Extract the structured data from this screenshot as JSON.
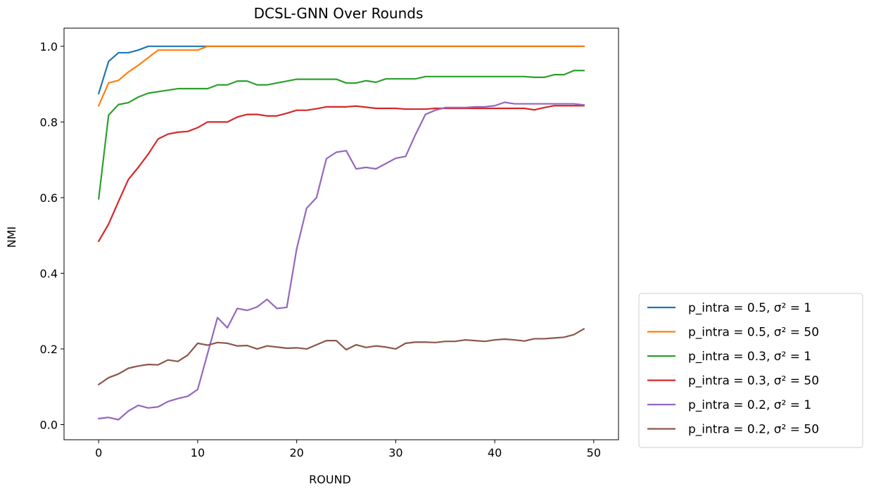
{
  "chart_data": {
    "type": "line",
    "title": "DCSL-GNN Over Rounds",
    "xlabel": "ROUND",
    "ylabel": "NMI",
    "xlim": [
      -3.5,
      52.5
    ],
    "ylim": [
      -0.04,
      1.048
    ],
    "xticks": [
      0,
      10,
      20,
      30,
      40,
      50
    ],
    "yticks": [
      0.0,
      0.2,
      0.4,
      0.6,
      0.8,
      1.0
    ],
    "xtick_labels": [
      "0",
      "10",
      "20",
      "30",
      "40",
      "50"
    ],
    "ytick_labels": [
      "0.0",
      "0.2",
      "0.4",
      "0.6",
      "0.8",
      "1.0"
    ],
    "grid": false,
    "legend_position": "outside-bottom-right",
    "x": [
      0,
      1,
      2,
      3,
      4,
      5,
      6,
      7,
      8,
      9,
      10,
      11,
      12,
      13,
      14,
      15,
      16,
      17,
      18,
      19,
      20,
      21,
      22,
      23,
      24,
      25,
      26,
      27,
      28,
      29,
      30,
      31,
      32,
      33,
      34,
      35,
      36,
      37,
      38,
      39,
      40,
      41,
      42,
      43,
      44,
      45,
      46,
      47,
      48,
      49
    ],
    "series": [
      {
        "name": "p_intra = 0.5, σ² = 1",
        "color": "#1f77b4",
        "values": [
          0.875,
          0.96,
          0.983,
          0.983,
          0.99,
          1.0,
          1.0,
          1.0,
          1.0,
          1.0,
          1.0,
          1.0,
          1.0,
          1.0,
          1.0,
          1.0,
          1.0,
          1.0,
          1.0,
          1.0,
          1.0,
          1.0,
          1.0,
          1.0,
          1.0,
          1.0,
          1.0,
          1.0,
          1.0,
          1.0,
          1.0,
          1.0,
          1.0,
          1.0,
          1.0,
          1.0,
          1.0,
          1.0,
          1.0,
          1.0,
          1.0,
          1.0,
          1.0,
          1.0,
          1.0,
          1.0,
          1.0,
          1.0,
          1.0,
          1.0
        ]
      },
      {
        "name": "p_intra = 0.5, σ² = 50",
        "color": "#ff7f0e",
        "values": [
          0.843,
          0.903,
          0.91,
          0.932,
          0.95,
          0.97,
          0.99,
          0.99,
          0.99,
          0.99,
          0.99,
          1.0,
          1.0,
          1.0,
          1.0,
          1.0,
          1.0,
          1.0,
          1.0,
          1.0,
          1.0,
          1.0,
          1.0,
          1.0,
          1.0,
          1.0,
          1.0,
          1.0,
          1.0,
          1.0,
          1.0,
          1.0,
          1.0,
          1.0,
          1.0,
          1.0,
          1.0,
          1.0,
          1.0,
          1.0,
          1.0,
          1.0,
          1.0,
          1.0,
          1.0,
          1.0,
          1.0,
          1.0,
          1.0,
          1.0
        ]
      },
      {
        "name": "p_intra = 0.3, σ² = 1",
        "color": "#2ca02c",
        "values": [
          0.597,
          0.818,
          0.846,
          0.851,
          0.866,
          0.876,
          0.88,
          0.884,
          0.888,
          0.888,
          0.888,
          0.888,
          0.898,
          0.898,
          0.908,
          0.908,
          0.898,
          0.898,
          0.903,
          0.908,
          0.913,
          0.913,
          0.913,
          0.913,
          0.913,
          0.903,
          0.903,
          0.909,
          0.905,
          0.914,
          0.914,
          0.914,
          0.914,
          0.92,
          0.92,
          0.92,
          0.92,
          0.92,
          0.92,
          0.92,
          0.92,
          0.92,
          0.92,
          0.92,
          0.918,
          0.918,
          0.925,
          0.925,
          0.936,
          0.936
        ]
      },
      {
        "name": "p_intra = 0.3, σ² = 50",
        "color": "#d62728",
        "values": [
          0.485,
          0.53,
          0.59,
          0.648,
          0.68,
          0.715,
          0.755,
          0.768,
          0.773,
          0.775,
          0.785,
          0.8,
          0.8,
          0.8,
          0.813,
          0.82,
          0.82,
          0.816,
          0.816,
          0.823,
          0.831,
          0.831,
          0.835,
          0.84,
          0.84,
          0.84,
          0.842,
          0.839,
          0.836,
          0.836,
          0.836,
          0.834,
          0.834,
          0.834,
          0.836,
          0.836,
          0.836,
          0.836,
          0.836,
          0.836,
          0.836,
          0.836,
          0.836,
          0.836,
          0.832,
          0.838,
          0.843,
          0.843,
          0.843,
          0.843
        ]
      },
      {
        "name": "p_intra = 0.2, σ² = 1",
        "color": "#9467bd",
        "values": [
          0.016,
          0.019,
          0.013,
          0.036,
          0.051,
          0.044,
          0.047,
          0.061,
          0.069,
          0.075,
          0.093,
          0.188,
          0.283,
          0.256,
          0.307,
          0.302,
          0.311,
          0.331,
          0.307,
          0.31,
          0.465,
          0.572,
          0.6,
          0.703,
          0.72,
          0.724,
          0.676,
          0.68,
          0.676,
          0.69,
          0.704,
          0.709,
          0.767,
          0.82,
          0.831,
          0.838,
          0.838,
          0.838,
          0.84,
          0.84,
          0.843,
          0.852,
          0.848,
          0.848,
          0.848,
          0.848,
          0.848,
          0.848,
          0.848,
          0.845
        ]
      },
      {
        "name": "p_intra = 0.2, σ² = 50",
        "color": "#8c564b",
        "values": [
          0.106,
          0.124,
          0.134,
          0.149,
          0.155,
          0.159,
          0.158,
          0.171,
          0.167,
          0.184,
          0.215,
          0.21,
          0.217,
          0.215,
          0.208,
          0.209,
          0.2,
          0.208,
          0.205,
          0.202,
          0.203,
          0.2,
          0.211,
          0.222,
          0.222,
          0.198,
          0.211,
          0.204,
          0.208,
          0.205,
          0.2,
          0.215,
          0.218,
          0.218,
          0.217,
          0.22,
          0.22,
          0.224,
          0.222,
          0.22,
          0.224,
          0.226,
          0.224,
          0.221,
          0.227,
          0.227,
          0.229,
          0.231,
          0.238,
          0.253
        ]
      }
    ]
  }
}
